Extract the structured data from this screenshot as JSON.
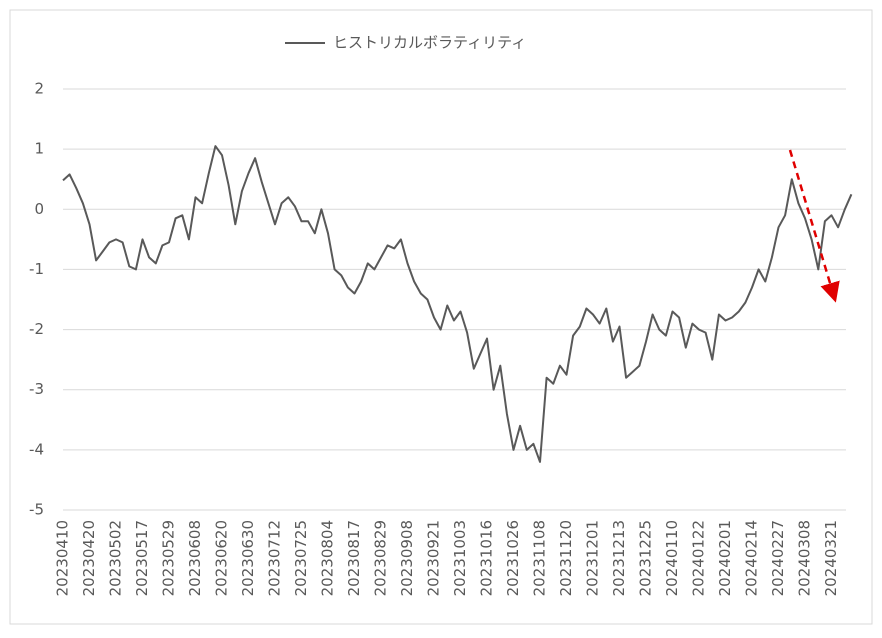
{
  "chart_data": {
    "type": "line",
    "categories": [
      "20230410",
      null,
      null,
      null,
      "20230420",
      null,
      null,
      null,
      "20230502",
      null,
      null,
      null,
      "20230517",
      null,
      null,
      null,
      "20230529",
      null,
      null,
      null,
      "20230608",
      null,
      null,
      null,
      "20230620",
      null,
      null,
      null,
      "20230630",
      null,
      null,
      null,
      "20230712",
      null,
      null,
      null,
      "20230725",
      null,
      null,
      null,
      "20230804",
      null,
      null,
      null,
      "20230817",
      null,
      null,
      null,
      "20230829",
      null,
      null,
      null,
      "20230908",
      null,
      null,
      null,
      "20230921",
      null,
      null,
      null,
      "20231003",
      null,
      null,
      null,
      "20231016",
      null,
      null,
      null,
      "20231026",
      null,
      null,
      null,
      "20231108",
      null,
      null,
      null,
      "20231120",
      null,
      null,
      null,
      "20231201",
      null,
      null,
      null,
      "20231213",
      null,
      null,
      null,
      "20231225",
      null,
      null,
      null,
      "20240110",
      null,
      null,
      null,
      "20240122",
      null,
      null,
      null,
      "20240201",
      null,
      null,
      null,
      "20240214",
      null,
      null,
      null,
      "20240227",
      null,
      null,
      null,
      "20240308",
      null,
      null,
      null,
      "20240321",
      null,
      null,
      null
    ],
    "series": [
      {
        "name": "ヒストリカルボラティリティ",
        "color": "#595959",
        "values": [
          0.48,
          0.58,
          0.35,
          0.1,
          -0.25,
          -0.85,
          -0.7,
          -0.55,
          -0.5,
          -0.55,
          -0.95,
          -1.0,
          -0.5,
          -0.8,
          -0.9,
          -0.6,
          -0.55,
          -0.15,
          -0.1,
          -0.5,
          0.2,
          0.1,
          0.6,
          1.05,
          0.9,
          0.4,
          -0.25,
          0.3,
          0.6,
          0.85,
          0.45,
          0.1,
          -0.25,
          0.1,
          0.2,
          0.05,
          -0.2,
          -0.2,
          -0.4,
          0.0,
          -0.4,
          -1.0,
          -1.1,
          -1.3,
          -1.4,
          -1.2,
          -0.9,
          -1.0,
          -0.8,
          -0.6,
          -0.65,
          -0.5,
          -0.9,
          -1.2,
          -1.4,
          -1.5,
          -1.8,
          -2.0,
          -1.6,
          -1.85,
          -1.7,
          -2.05,
          -2.65,
          -2.4,
          -2.15,
          -3.0,
          -2.6,
          -3.4,
          -4.0,
          -3.6,
          -4.0,
          -3.9,
          -4.2,
          -2.8,
          -2.9,
          -2.6,
          -2.75,
          -2.1,
          -1.95,
          -1.65,
          -1.75,
          -1.9,
          -1.65,
          -2.2,
          -1.95,
          -2.8,
          -2.7,
          -2.6,
          -2.2,
          -1.75,
          -2.0,
          -2.1,
          -1.7,
          -1.8,
          -2.3,
          -1.9,
          -2.0,
          -2.05,
          -2.5,
          -1.75,
          -1.85,
          -1.8,
          -1.7,
          -1.55,
          -1.3,
          -1.0,
          -1.2,
          -0.8,
          -0.3,
          -0.1,
          0.5,
          0.1,
          -0.15,
          -0.5,
          -1.0,
          -0.2,
          -0.1,
          -0.3,
          0.0,
          0.25
        ]
      }
    ],
    "ylim": [
      -5,
      2
    ],
    "yticks": [
      -5,
      -4,
      -3,
      -2,
      -1,
      0,
      1,
      2
    ],
    "grid": true,
    "legend": "top"
  }
}
